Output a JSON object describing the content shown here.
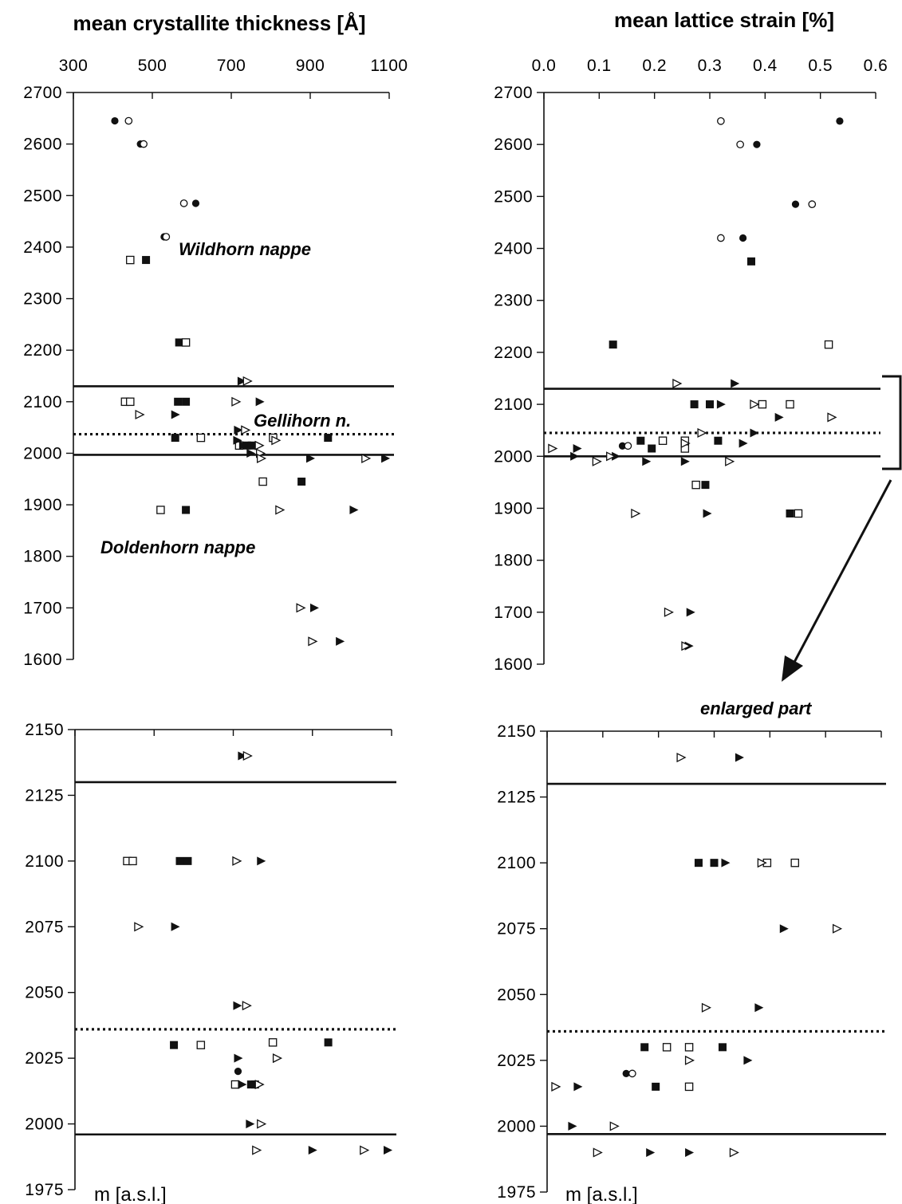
{
  "figure": {
    "left_title": "mean crystallite thickness [Å]",
    "right_title": "mean lattice strain [%]",
    "enlarged_label": "enlarged part",
    "unit_label": "m [a.s.l.]",
    "annotations": {
      "wildhorn": "Wildhorn nappe",
      "gellihorn": "Gellihorn n.",
      "doldenhorn": "Doldenhorn nappe"
    }
  },
  "chart_data": [
    {
      "type": "scatter",
      "title": "mean crystallite thickness [Å]",
      "xlabel": "",
      "ylabel": "",
      "xlim": [
        300,
        1100
      ],
      "ylim": [
        1600,
        2700
      ],
      "x_ticks": [
        300,
        500,
        700,
        900,
        1100
      ],
      "y_ticks": [
        1600,
        1700,
        1800,
        1900,
        2000,
        2100,
        2200,
        2300,
        2400,
        2500,
        2600,
        2700
      ],
      "grid": false,
      "boundaries": [
        {
          "y": 2130,
          "style": "solid"
        },
        {
          "y": 2037,
          "style": "dotted"
        },
        {
          "y": 1997,
          "style": "solid"
        }
      ],
      "series": [
        {
          "marker": "filled-circle",
          "points": [
            [
              405,
              2645
            ],
            [
              470,
              2600
            ],
            [
              530,
              2420
            ],
            [
              610,
              2485
            ],
            [
              718,
              2020
            ]
          ]
        },
        {
          "marker": "open-circle",
          "points": [
            [
              440,
              2645
            ],
            [
              478,
              2600
            ],
            [
              580,
              2485
            ],
            [
              535,
              2420
            ]
          ]
        },
        {
          "marker": "filled-square",
          "points": [
            [
              484,
              2375
            ],
            [
              568,
              2215
            ],
            [
              565,
              2100
            ],
            [
              585,
              2100
            ],
            [
              558,
              2030
            ],
            [
              740,
              2015
            ],
            [
              752,
              2015
            ],
            [
              945,
              2030
            ],
            [
              878,
              1945
            ],
            [
              585,
              1890
            ]
          ]
        },
        {
          "marker": "open-square",
          "points": [
            [
              444,
              2375
            ],
            [
              585,
              2215
            ],
            [
              431,
              2100
            ],
            [
              444,
              2100
            ],
            [
              623,
              2030
            ],
            [
              806,
              2030
            ],
            [
              720,
              2015
            ],
            [
              780,
              1945
            ],
            [
              521,
              1890
            ]
          ]
        },
        {
          "marker": "filled-triangle",
          "points": [
            [
              726,
              2140
            ],
            [
              772,
              2100
            ],
            [
              558,
              2075
            ],
            [
              717,
              2045
            ],
            [
              715,
              2025
            ],
            [
              730,
              2015
            ],
            [
              749,
              2000
            ],
            [
              900,
              1990
            ],
            [
              1090,
              1990
            ],
            [
              1010,
              1890
            ],
            [
              910,
              1700
            ],
            [
              975,
              1635
            ]
          ]
        },
        {
          "marker": "open-triangle",
          "points": [
            [
              740,
              2140
            ],
            [
              711,
              2100
            ],
            [
              467,
              2075
            ],
            [
              735,
              2045
            ],
            [
              812,
              2025
            ],
            [
              770,
              2015
            ],
            [
              773,
              2000
            ],
            [
              775,
              1990
            ],
            [
              1040,
              1990
            ],
            [
              822,
              1890
            ],
            [
              875,
              1700
            ],
            [
              905,
              1635
            ]
          ]
        }
      ]
    },
    {
      "type": "scatter",
      "title": "mean lattice strain [%]",
      "xlabel": "",
      "ylabel": "",
      "xlim": [
        0,
        0.6
      ],
      "ylim": [
        1600,
        2700
      ],
      "x_ticks": [
        0.0,
        0.1,
        0.2,
        0.3,
        0.4,
        0.5,
        0.6
      ],
      "y_ticks": [
        1600,
        1700,
        1800,
        1900,
        2000,
        2100,
        2200,
        2300,
        2400,
        2500,
        2600,
        2700
      ],
      "grid": false,
      "boundaries": [
        {
          "y": 2130,
          "style": "solid"
        },
        {
          "y": 2045,
          "style": "dotted"
        },
        {
          "y": 2000,
          "style": "solid"
        }
      ],
      "series": [
        {
          "marker": "filled-circle",
          "points": [
            [
              0.535,
              2645
            ],
            [
              0.385,
              2600
            ],
            [
              0.455,
              2485
            ],
            [
              0.36,
              2420
            ],
            [
              0.142,
              2020
            ]
          ]
        },
        {
          "marker": "open-circle",
          "points": [
            [
              0.32,
              2645
            ],
            [
              0.355,
              2600
            ],
            [
              0.485,
              2485
            ],
            [
              0.32,
              2420
            ],
            [
              0.152,
              2020
            ]
          ]
        },
        {
          "marker": "filled-square",
          "points": [
            [
              0.375,
              2375
            ],
            [
              0.125,
              2215
            ],
            [
              0.272,
              2100
            ],
            [
              0.3,
              2100
            ],
            [
              0.175,
              2030
            ],
            [
              0.315,
              2030
            ],
            [
              0.195,
              2015
            ],
            [
              0.292,
              1945
            ],
            [
              0.445,
              1890
            ]
          ]
        },
        {
          "marker": "open-square",
          "points": [
            [
              0.515,
              2215
            ],
            [
              0.395,
              2100
            ],
            [
              0.445,
              2100
            ],
            [
              0.215,
              2030
            ],
            [
              0.255,
              2030
            ],
            [
              0.255,
              2015
            ],
            [
              0.275,
              1945
            ],
            [
              0.46,
              1890
            ]
          ]
        },
        {
          "marker": "filled-triangle",
          "points": [
            [
              0.345,
              2140
            ],
            [
              0.32,
              2100
            ],
            [
              0.425,
              2075
            ],
            [
              0.38,
              2045
            ],
            [
              0.36,
              2025
            ],
            [
              0.06,
              2015
            ],
            [
              0.055,
              2000
            ],
            [
              0.13,
              2000
            ],
            [
              0.185,
              1990
            ],
            [
              0.255,
              1990
            ],
            [
              0.295,
              1890
            ],
            [
              0.265,
              1700
            ],
            [
              0.262,
              1635
            ]
          ]
        },
        {
          "marker": "open-triangle",
          "points": [
            [
              0.24,
              2140
            ],
            [
              0.38,
              2100
            ],
            [
              0.52,
              2075
            ],
            [
              0.285,
              2045
            ],
            [
              0.255,
              2025
            ],
            [
              0.015,
              2015
            ],
            [
              0.12,
              2000
            ],
            [
              0.095,
              1990
            ],
            [
              0.335,
              1990
            ],
            [
              0.165,
              1890
            ],
            [
              0.225,
              1700
            ],
            [
              0.256,
              1635
            ]
          ]
        }
      ]
    },
    {
      "type": "scatter",
      "title": "",
      "xlabel": "",
      "ylabel": "m [a.s.l.]",
      "xlim": [
        300,
        1100
      ],
      "ylim": [
        1975,
        2150
      ],
      "x_ticks": [
        300,
        500,
        700,
        900,
        1100
      ],
      "y_ticks": [
        1975,
        2000,
        2025,
        2050,
        2075,
        2100,
        2125,
        2150
      ],
      "grid": false,
      "boundaries": [
        {
          "y": 2130,
          "style": "solid"
        },
        {
          "y": 2036,
          "style": "dotted"
        },
        {
          "y": 1996,
          "style": "solid"
        }
      ],
      "series": [
        {
          "marker": "filled-circle",
          "points": [
            [
              712,
              2020
            ]
          ]
        },
        {
          "marker": "filled-square",
          "points": [
            [
              565,
              2100
            ],
            [
              585,
              2100
            ],
            [
              550,
              2030
            ],
            [
              940,
              2031
            ],
            [
              745,
              2015
            ],
            [
              755,
              2015
            ]
          ]
        },
        {
          "marker": "open-square",
          "points": [
            [
              432,
              2100
            ],
            [
              446,
              2100
            ],
            [
              618,
              2030
            ],
            [
              800,
              2031
            ],
            [
              705,
              2015
            ]
          ]
        },
        {
          "marker": "filled-triangle",
          "points": [
            [
              722,
              2140
            ],
            [
              770,
              2100
            ],
            [
              553,
              2075
            ],
            [
              710,
              2045
            ],
            [
              712,
              2025
            ],
            [
              722,
              2015
            ],
            [
              742,
              2000
            ],
            [
              900,
              1990
            ],
            [
              1090,
              1990
            ]
          ]
        },
        {
          "marker": "open-triangle",
          "points": [
            [
              735,
              2140
            ],
            [
              708,
              2100
            ],
            [
              460,
              2075
            ],
            [
              733,
              2045
            ],
            [
              810,
              2025
            ],
            [
              765,
              2015
            ],
            [
              770,
              2000
            ],
            [
              758,
              1990
            ],
            [
              1030,
              1990
            ]
          ]
        }
      ]
    },
    {
      "type": "scatter",
      "title": "",
      "xlabel": "",
      "ylabel": "m [a.s.l.]",
      "xlim": [
        0,
        0.6
      ],
      "ylim": [
        1975,
        2150
      ],
      "x_ticks": [
        0.0,
        0.1,
        0.2,
        0.3,
        0.4,
        0.5,
        0.6
      ],
      "y_ticks": [
        1975,
        2000,
        2025,
        2050,
        2075,
        2100,
        2125,
        2150
      ],
      "grid": false,
      "boundaries": [
        {
          "y": 2130,
          "style": "solid"
        },
        {
          "y": 2036,
          "style": "dotted"
        },
        {
          "y": 1997,
          "style": "solid"
        }
      ],
      "series": [
        {
          "marker": "filled-circle",
          "points": [
            [
              0.142,
              2020
            ]
          ]
        },
        {
          "marker": "open-circle",
          "points": [
            [
              0.153,
              2020
            ]
          ]
        },
        {
          "marker": "filled-square",
          "points": [
            [
              0.272,
              2100
            ],
            [
              0.3,
              2100
            ],
            [
              0.175,
              2030
            ],
            [
              0.315,
              2030
            ],
            [
              0.195,
              2015
            ]
          ]
        },
        {
          "marker": "open-square",
          "points": [
            [
              0.395,
              2100
            ],
            [
              0.445,
              2100
            ],
            [
              0.215,
              2030
            ],
            [
              0.255,
              2030
            ],
            [
              0.255,
              2015
            ]
          ]
        },
        {
          "marker": "filled-triangle",
          "points": [
            [
              0.345,
              2140
            ],
            [
              0.32,
              2100
            ],
            [
              0.425,
              2075
            ],
            [
              0.38,
              2045
            ],
            [
              0.36,
              2025
            ],
            [
              0.055,
              2015
            ],
            [
              0.045,
              2000
            ],
            [
              0.185,
              1990
            ],
            [
              0.255,
              1990
            ]
          ]
        },
        {
          "marker": "open-triangle",
          "points": [
            [
              0.24,
              2140
            ],
            [
              0.385,
              2100
            ],
            [
              0.52,
              2075
            ],
            [
              0.285,
              2045
            ],
            [
              0.255,
              2025
            ],
            [
              0.015,
              2015
            ],
            [
              0.12,
              2000
            ],
            [
              0.09,
              1990
            ],
            [
              0.335,
              1990
            ]
          ]
        }
      ]
    }
  ]
}
